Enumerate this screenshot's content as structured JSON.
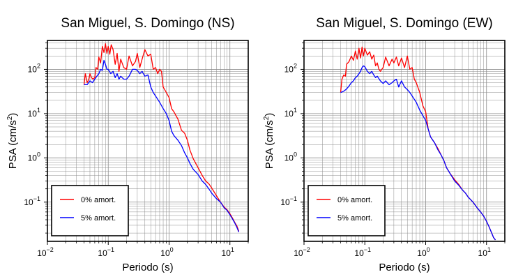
{
  "chart_data": [
    {
      "type": "line",
      "title": "San Miguel, S. Domingo (NS)",
      "xlabel": "Periodo (s)",
      "ylabel_base": "PSA (cm/s",
      "ylabel_exp": "2",
      "ylabel_end": ")",
      "x_scale": "log",
      "y_scale": "log",
      "xlim": [
        0.01,
        20
      ],
      "ylim": [
        0.013,
        450
      ],
      "xticks": [
        {
          "base": "10",
          "exp": "−2",
          "value": 0.01
        },
        {
          "base": "10",
          "exp": "−1",
          "value": 0.1
        },
        {
          "base": "10",
          "exp": "0",
          "value": 1
        },
        {
          "base": "10",
          "exp": "1",
          "value": 10
        }
      ],
      "yticks": [
        {
          "base": "10",
          "exp": "−1",
          "value": 0.1
        },
        {
          "base": "10",
          "exp": "0",
          "value": 1
        },
        {
          "base": "10",
          "exp": "1",
          "value": 10
        },
        {
          "base": "10",
          "exp": "2",
          "value": 100
        }
      ],
      "grid": true,
      "legend_position": "bottom-left",
      "series": [
        {
          "name": "0% amort.",
          "color": "#ff0000",
          "x": [
            0.04,
            0.042,
            0.045,
            0.048,
            0.05,
            0.053,
            0.056,
            0.06,
            0.063,
            0.067,
            0.07,
            0.075,
            0.08,
            0.085,
            0.09,
            0.095,
            0.1,
            0.106,
            0.112,
            0.12,
            0.13,
            0.14,
            0.15,
            0.16,
            0.18,
            0.2,
            0.22,
            0.25,
            0.28,
            0.3,
            0.33,
            0.36,
            0.4,
            0.45,
            0.5,
            0.55,
            0.6,
            0.65,
            0.7,
            0.75,
            0.8,
            0.9,
            1.0,
            1.1,
            1.2,
            1.4,
            1.6,
            1.8,
            2.0,
            2.2,
            2.5,
            3.0,
            3.5,
            4.0,
            4.5,
            5.0,
            6.0,
            7.0,
            8.0,
            9.0,
            10.0,
            11.0,
            12.0,
            13.0,
            14.0
          ],
          "values": [
            45,
            80,
            50,
            60,
            80,
            65,
            60,
            65,
            110,
            100,
            190,
            140,
            330,
            240,
            380,
            230,
            330,
            220,
            360,
            280,
            130,
            230,
            90,
            170,
            110,
            100,
            200,
            120,
            150,
            230,
            110,
            170,
            280,
            200,
            220,
            100,
            110,
            80,
            100,
            90,
            40,
            30,
            23,
            13,
            11,
            7.5,
            4.2,
            3.6,
            2.5,
            1.5,
            0.95,
            0.6,
            0.4,
            0.3,
            0.26,
            0.21,
            0.14,
            0.1,
            0.078,
            0.067,
            0.055,
            0.044,
            0.035,
            0.029,
            0.022
          ]
        },
        {
          "name": "5% amort.",
          "color": "#0000ff",
          "x": [
            0.04,
            0.045,
            0.05,
            0.055,
            0.06,
            0.065,
            0.07,
            0.075,
            0.08,
            0.085,
            0.09,
            0.095,
            0.1,
            0.11,
            0.12,
            0.13,
            0.14,
            0.15,
            0.16,
            0.18,
            0.2,
            0.22,
            0.25,
            0.28,
            0.3,
            0.33,
            0.36,
            0.4,
            0.45,
            0.5,
            0.55,
            0.6,
            0.7,
            0.8,
            0.9,
            1.0,
            1.1,
            1.2,
            1.4,
            1.6,
            1.8,
            2.0,
            2.2,
            2.5,
            3.0,
            3.5,
            4.0,
            4.5,
            5.0,
            6.0,
            7.0,
            8.0,
            9.0,
            10.0,
            11.0,
            12.0,
            13.0,
            14.0
          ],
          "values": [
            45,
            45,
            55,
            50,
            60,
            70,
            80,
            100,
            95,
            160,
            130,
            100,
            100,
            80,
            90,
            65,
            80,
            60,
            70,
            60,
            60,
            70,
            100,
            100,
            95,
            80,
            90,
            70,
            75,
            40,
            30,
            25,
            18,
            13,
            10,
            7,
            4,
            3.2,
            2.5,
            1.9,
            1.3,
            1.0,
            0.75,
            0.55,
            0.42,
            0.3,
            0.25,
            0.2,
            0.16,
            0.12,
            0.1,
            0.075,
            0.065,
            0.052,
            0.042,
            0.034,
            0.027,
            0.021
          ]
        }
      ]
    },
    {
      "type": "line",
      "title": "San Miguel, S. Domingo (EW)",
      "xlabel": "Periodo (s)",
      "ylabel_base": "PSA (cm/s",
      "ylabel_exp": "2",
      "ylabel_end": ")",
      "x_scale": "log",
      "y_scale": "log",
      "xlim": [
        0.01,
        20
      ],
      "ylim": [
        0.013,
        450
      ],
      "xticks": [
        {
          "base": "10",
          "exp": "−2",
          "value": 0.01
        },
        {
          "base": "10",
          "exp": "−1",
          "value": 0.1
        },
        {
          "base": "10",
          "exp": "0",
          "value": 1
        },
        {
          "base": "10",
          "exp": "1",
          "value": 10
        }
      ],
      "yticks": [
        {
          "base": "10",
          "exp": "−1",
          "value": 0.1
        },
        {
          "base": "10",
          "exp": "0",
          "value": 1
        },
        {
          "base": "10",
          "exp": "1",
          "value": 10
        },
        {
          "base": "10",
          "exp": "2",
          "value": 100
        }
      ],
      "grid": true,
      "legend_position": "bottom-left",
      "series": [
        {
          "name": "0% amort.",
          "color": "#ff0000",
          "x": [
            0.04,
            0.042,
            0.045,
            0.048,
            0.05,
            0.055,
            0.06,
            0.065,
            0.07,
            0.075,
            0.08,
            0.085,
            0.09,
            0.095,
            0.1,
            0.11,
            0.12,
            0.13,
            0.14,
            0.15,
            0.16,
            0.17,
            0.18,
            0.2,
            0.22,
            0.25,
            0.28,
            0.3,
            0.33,
            0.36,
            0.4,
            0.45,
            0.5,
            0.55,
            0.6,
            0.65,
            0.7,
            0.8,
            0.9,
            1.0,
            1.1,
            1.2,
            1.4,
            1.6,
            1.8,
            2.0,
            2.2,
            2.5,
            3.0,
            3.5,
            4.0,
            4.5,
            5.0,
            6.0,
            7.0,
            8.0,
            9.0,
            10.0,
            11.0,
            12.0,
            13.0,
            14.0
          ],
          "values": [
            30,
            60,
            75,
            70,
            130,
            150,
            200,
            160,
            260,
            170,
            300,
            180,
            320,
            200,
            300,
            210,
            250,
            170,
            210,
            120,
            140,
            100,
            90,
            110,
            190,
            120,
            170,
            140,
            190,
            120,
            180,
            110,
            200,
            100,
            110,
            60,
            50,
            30,
            15,
            11,
            4.5,
            3.0,
            2.2,
            1.6,
            1.15,
            0.85,
            0.6,
            0.45,
            0.32,
            0.25,
            0.19,
            0.16,
            0.13,
            0.1,
            0.075,
            0.06,
            0.048,
            0.037,
            0.028,
            0.021,
            0.016,
            0.014
          ]
        },
        {
          "name": "5% amort.",
          "color": "#0000ff",
          "x": [
            0.04,
            0.045,
            0.05,
            0.055,
            0.06,
            0.065,
            0.07,
            0.075,
            0.08,
            0.085,
            0.09,
            0.095,
            0.1,
            0.11,
            0.12,
            0.13,
            0.14,
            0.15,
            0.16,
            0.18,
            0.2,
            0.22,
            0.25,
            0.28,
            0.3,
            0.33,
            0.36,
            0.4,
            0.45,
            0.5,
            0.55,
            0.6,
            0.7,
            0.8,
            0.9,
            1.0,
            1.1,
            1.2,
            1.4,
            1.6,
            1.8,
            2.0,
            2.2,
            2.5,
            3.0,
            3.5,
            4.0,
            4.5,
            5.0,
            6.0,
            7.0,
            8.0,
            9.0,
            10.0,
            11.0,
            12.0,
            13.0,
            14.0
          ],
          "values": [
            30,
            32,
            36,
            42,
            50,
            55,
            65,
            70,
            80,
            90,
            110,
            120,
            115,
            90,
            80,
            90,
            75,
            65,
            70,
            55,
            48,
            55,
            45,
            50,
            55,
            60,
            40,
            55,
            40,
            35,
            30,
            25,
            18,
            12,
            9,
            7,
            4.5,
            3.0,
            2.2,
            1.5,
            1.15,
            0.85,
            0.6,
            0.45,
            0.3,
            0.24,
            0.19,
            0.16,
            0.13,
            0.1,
            0.075,
            0.06,
            0.048,
            0.037,
            0.028,
            0.021,
            0.016,
            0.014
          ]
        }
      ]
    }
  ]
}
